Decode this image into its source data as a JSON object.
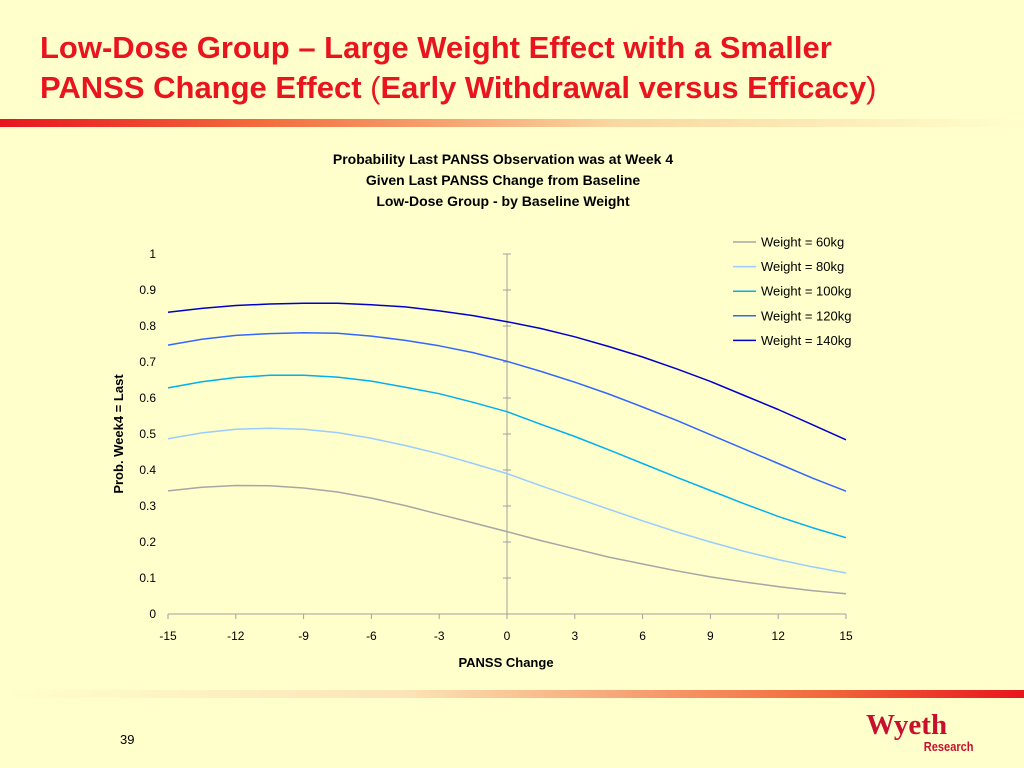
{
  "slide": {
    "title_line1": "Low-Dose Group – Large Weight Effect with a Smaller",
    "title_line2_main": "PANSS Change Effect ",
    "title_line2_open": "(",
    "title_line2_paren": "Early Withdrawal versus Efficacy",
    "title_line2_close": ")",
    "page_number": "39",
    "logo_name": "Wyeth",
    "logo_sub": "Research",
    "accent_color": "#E8141E",
    "background_color": "#FFFFCC"
  },
  "chart_data": {
    "type": "line",
    "title": [
      "Probability Last PANSS Observation was at Week 4",
      "Given Last PANSS Change from Baseline",
      "Low-Dose Group - by Baseline Weight"
    ],
    "xlabel": "PANSS Change",
    "ylabel": "Prob. Week4 = Last",
    "xlim": [
      -15,
      15
    ],
    "ylim": [
      0,
      1
    ],
    "x_ticks": [
      -15,
      -12,
      -9,
      -6,
      -3,
      0,
      3,
      6,
      9,
      12,
      15
    ],
    "y_ticks": [
      0,
      0.1,
      0.2,
      0.3,
      0.4,
      0.5,
      0.6,
      0.7,
      0.8,
      0.9,
      1
    ],
    "legend_position": "top-right",
    "grid": false,
    "x": [
      -15,
      -13.5,
      -12,
      -10.5,
      -9,
      -7.5,
      -6,
      -4.5,
      -3,
      -1.5,
      0,
      1.5,
      3,
      4.5,
      6,
      7.5,
      9,
      10.5,
      12,
      13.5,
      15
    ],
    "series": [
      {
        "name": "Weight = 60kg",
        "color": "#A6A6A6",
        "values": [
          0.342,
          0.352,
          0.357,
          0.356,
          0.35,
          0.339,
          0.322,
          0.301,
          0.277,
          0.253,
          0.229,
          0.204,
          0.181,
          0.158,
          0.139,
          0.12,
          0.103,
          0.089,
          0.076,
          0.065,
          0.056
        ]
      },
      {
        "name": "Weight = 80kg",
        "color": "#99CCFF",
        "values": [
          0.487,
          0.503,
          0.513,
          0.516,
          0.513,
          0.504,
          0.488,
          0.468,
          0.445,
          0.418,
          0.39,
          0.356,
          0.324,
          0.291,
          0.259,
          0.228,
          0.2,
          0.174,
          0.151,
          0.131,
          0.114
        ]
      },
      {
        "name": "Weight = 100kg",
        "color": "#00B0F0",
        "values": [
          0.628,
          0.645,
          0.657,
          0.663,
          0.663,
          0.658,
          0.647,
          0.63,
          0.612,
          0.588,
          0.562,
          0.527,
          0.493,
          0.456,
          0.418,
          0.38,
          0.343,
          0.306,
          0.271,
          0.24,
          0.212
        ]
      },
      {
        "name": "Weight = 120kg",
        "color": "#3366FF",
        "values": [
          0.747,
          0.763,
          0.774,
          0.779,
          0.781,
          0.78,
          0.772,
          0.76,
          0.745,
          0.726,
          0.702,
          0.674,
          0.644,
          0.611,
          0.575,
          0.538,
          0.498,
          0.458,
          0.418,
          0.378,
          0.341
        ]
      },
      {
        "name": "Weight = 140kg",
        "color": "#0000CC",
        "values": [
          0.838,
          0.849,
          0.857,
          0.861,
          0.863,
          0.863,
          0.859,
          0.853,
          0.842,
          0.829,
          0.812,
          0.793,
          0.77,
          0.743,
          0.714,
          0.681,
          0.646,
          0.607,
          0.568,
          0.526,
          0.484
        ]
      }
    ]
  }
}
